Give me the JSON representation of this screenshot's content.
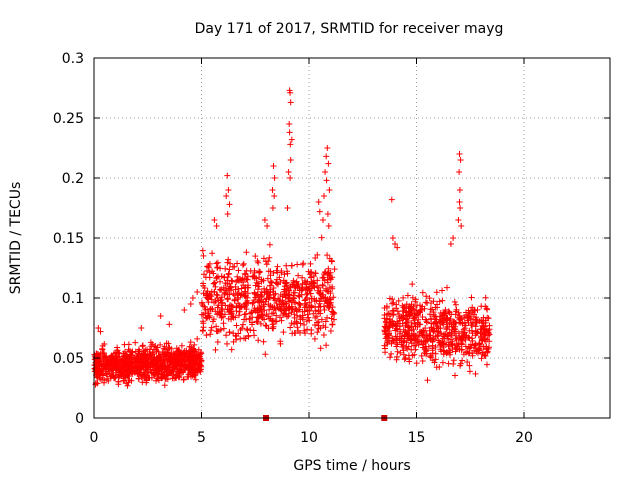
{
  "chart_data": {
    "type": "scatter",
    "title": "Day 171 of 2017, SRMTID for receiver mayg",
    "xlabel": "GPS time / hours",
    "ylabel": "SRMTID / TECUs",
    "xlim": [
      0,
      24
    ],
    "ylim": [
      0,
      0.3
    ],
    "xticks": [
      0,
      5,
      10,
      15,
      20
    ],
    "xtick_labels": [
      "0",
      "5",
      "10",
      "15",
      "20"
    ],
    "yticks": [
      0,
      0.05,
      0.1,
      0.15,
      0.2,
      0.25,
      0.3
    ],
    "ytick_labels": [
      "0",
      "0.05",
      "0.1",
      "0.15",
      "0.2",
      "0.25",
      "0.3"
    ],
    "grid": true,
    "marker": "plus",
    "series_color": "#ff0000",
    "marker_color": "#cc0000",
    "series": [
      {
        "name": "SRMTID",
        "density_segments": [
          {
            "x": [
              0.0,
              5.0
            ],
            "n": 950,
            "base": 0.043,
            "spread": 0.011,
            "slope": 0.004,
            "ymin": 0.015,
            "ymax": 0.085
          },
          {
            "x": [
              5.0,
              11.2
            ],
            "n": 750,
            "base": 0.1,
            "spread": 0.028,
            "slope": 0.0,
            "ymin": 0.035,
            "ymax": 0.17
          },
          {
            "x": [
              13.5,
              18.4
            ],
            "n": 650,
            "base": 0.075,
            "spread": 0.022,
            "slope": -0.004,
            "ymin": 0.025,
            "ymax": 0.15
          }
        ],
        "points": [
          [
            9.1,
            0.273
          ],
          [
            9.12,
            0.271
          ],
          [
            9.15,
            0.263
          ],
          [
            9.08,
            0.245
          ],
          [
            9.1,
            0.238
          ],
          [
            9.2,
            0.232
          ],
          [
            9.13,
            0.228
          ],
          [
            9.15,
            0.215
          ],
          [
            9.05,
            0.205
          ],
          [
            9.12,
            0.2
          ],
          [
            8.35,
            0.21
          ],
          [
            8.4,
            0.2
          ],
          [
            8.3,
            0.19
          ],
          [
            8.38,
            0.185
          ],
          [
            8.32,
            0.175
          ],
          [
            10.85,
            0.225
          ],
          [
            10.8,
            0.218
          ],
          [
            10.9,
            0.212
          ],
          [
            10.75,
            0.205
          ],
          [
            10.82,
            0.198
          ],
          [
            10.95,
            0.19
          ],
          [
            10.7,
            0.185
          ],
          [
            10.88,
            0.17
          ],
          [
            10.65,
            0.165
          ],
          [
            10.92,
            0.16
          ],
          [
            6.2,
            0.202
          ],
          [
            6.25,
            0.19
          ],
          [
            6.15,
            0.185
          ],
          [
            6.3,
            0.178
          ],
          [
            6.22,
            0.17
          ],
          [
            5.6,
            0.165
          ],
          [
            5.7,
            0.16
          ],
          [
            7.95,
            0.165
          ],
          [
            8.05,
            0.16
          ],
          [
            9.0,
            0.175
          ],
          [
            10.45,
            0.18
          ],
          [
            10.5,
            0.172
          ],
          [
            17.0,
            0.22
          ],
          [
            17.05,
            0.215
          ],
          [
            16.98,
            0.205
          ],
          [
            17.02,
            0.19
          ],
          [
            17.0,
            0.18
          ],
          [
            17.03,
            0.175
          ],
          [
            16.95,
            0.165
          ],
          [
            17.08,
            0.16
          ],
          [
            16.6,
            0.145
          ],
          [
            16.7,
            0.15
          ],
          [
            13.85,
            0.182
          ],
          [
            13.9,
            0.15
          ],
          [
            14.0,
            0.145
          ],
          [
            14.1,
            0.142
          ],
          [
            0.2,
            0.075
          ],
          [
            0.3,
            0.072
          ],
          [
            2.2,
            0.075
          ],
          [
            3.1,
            0.085
          ],
          [
            3.5,
            0.078
          ],
          [
            4.5,
            0.095
          ],
          [
            4.6,
            0.1
          ],
          [
            4.2,
            0.09
          ],
          [
            4.8,
            0.105
          ]
        ]
      }
    ],
    "bottom_markers": [
      8.0,
      13.5
    ]
  }
}
